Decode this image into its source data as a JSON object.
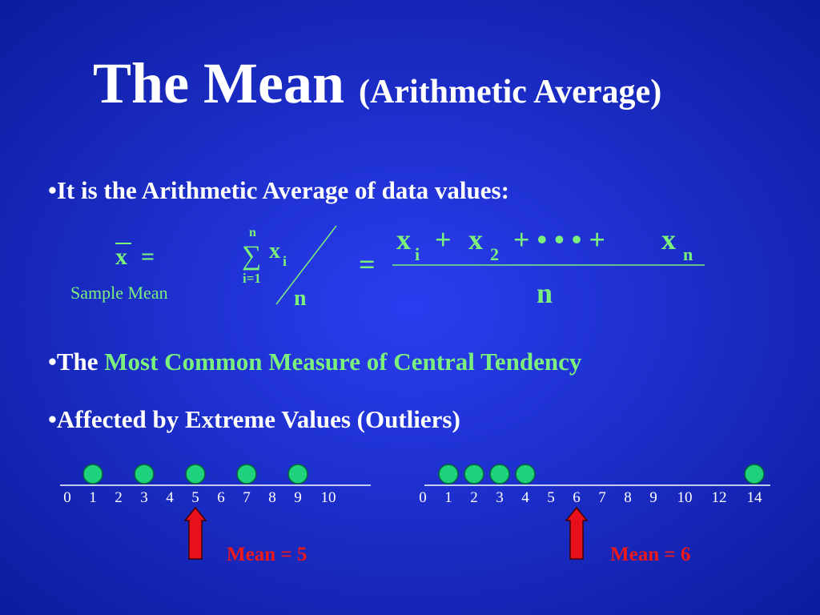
{
  "title": {
    "main": "The Mean",
    "sub": "(Arithmetic Average)"
  },
  "bullets": [
    {
      "text": "•It is the Arithmetic Average of data values:"
    },
    {
      "prefix": "•The ",
      "highlight": "Most Common Measure of Central Tendency"
    },
    {
      "text": "•Affected by Extreme Values (Outliers)"
    }
  ],
  "formula": {
    "xbar": "x",
    "eq1": "=",
    "caption": "Sample Mean",
    "sum_top": "n",
    "sigma": "∑",
    "sum_x": "x",
    "sum_sub": "i",
    "sum_bottom": "i=1",
    "divisor": "n",
    "eq2": "=",
    "numerator": [
      "x",
      "i",
      "+",
      "x",
      "2",
      "+ • • • +",
      "x",
      "n"
    ],
    "denominator": "n"
  },
  "number_lines": [
    {
      "ticks": [
        0,
        1,
        2,
        3,
        4,
        5,
        6,
        7,
        8,
        9,
        10
      ],
      "dots": [
        1,
        3,
        5,
        7,
        9
      ],
      "mean": {
        "value": 5,
        "label": "Mean = 5"
      }
    },
    {
      "ticks": [
        0,
        1,
        2,
        3,
        4,
        5,
        6,
        7,
        8,
        9,
        10,
        12,
        14
      ],
      "dots": [
        1,
        2,
        3,
        4,
        14
      ],
      "mean": {
        "value": 6,
        "label": "Mean = 6"
      }
    }
  ]
}
